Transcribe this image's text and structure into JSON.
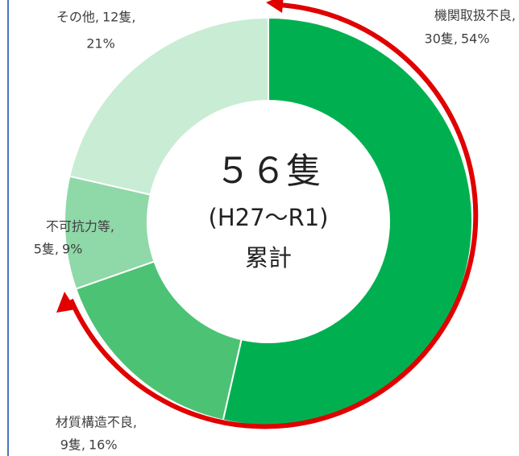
{
  "chart_data": {
    "type": "donut",
    "center_text": [
      "５６隻",
      "(H27～R1)",
      "累計"
    ],
    "categories": [
      "機関取扱不良,",
      "材質構造不良,",
      "不可抗力等,",
      "その他,"
    ],
    "values": [
      30,
      9,
      5,
      12
    ],
    "value_labels": [
      "30隻,",
      "9隻,",
      "5隻,",
      "12隻,"
    ],
    "percent_labels": [
      "54%",
      "16%",
      "9%",
      "21%"
    ],
    "colors": [
      "#00b050",
      "#4cc275",
      "#8fd8a8",
      "#c9ecd4"
    ]
  }
}
